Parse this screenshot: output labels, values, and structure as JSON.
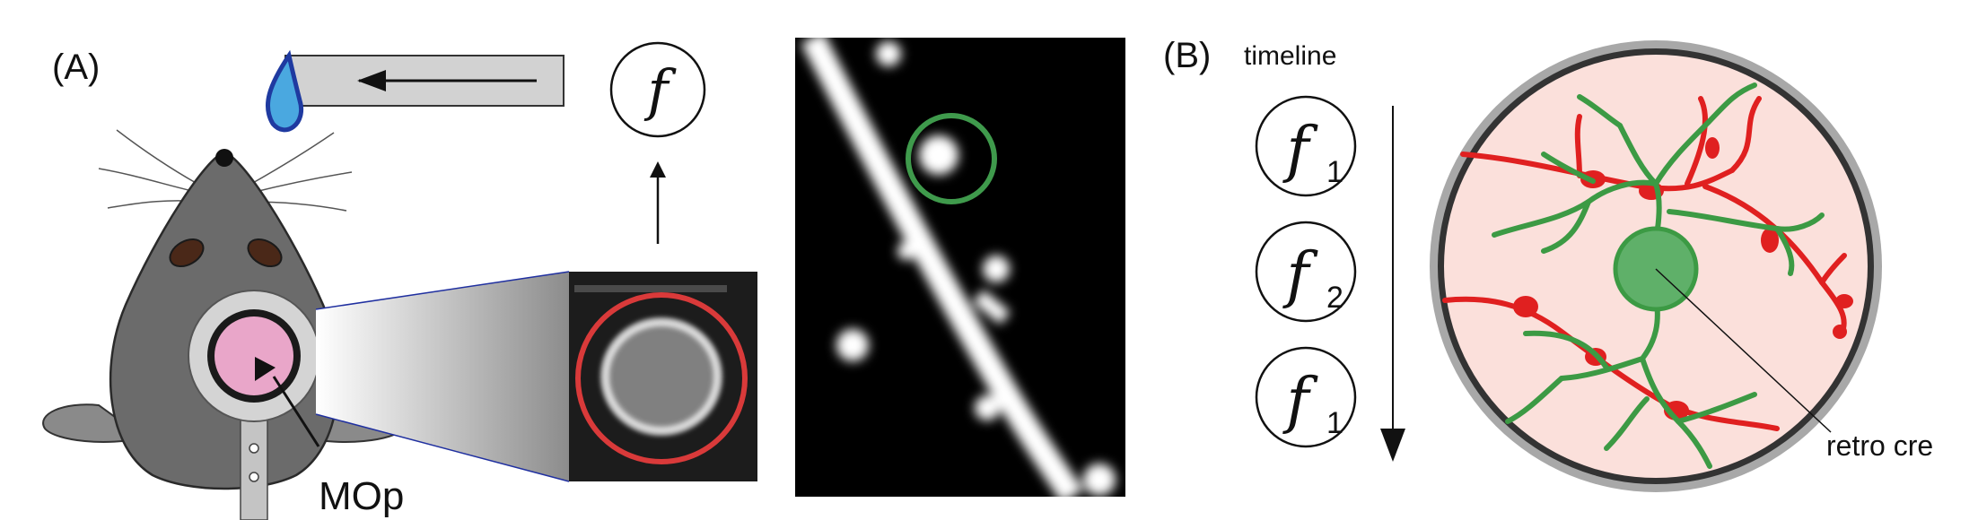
{
  "panel_a": {
    "label": "(A)",
    "region_label": "MOp",
    "signal_symbol": "f"
  },
  "panel_b": {
    "label": "(B)",
    "timeline_label": "timeline",
    "timeline_steps": [
      {
        "symbol": "f",
        "subscript": "1"
      },
      {
        "symbol": "f",
        "subscript": "2"
      },
      {
        "symbol": "f",
        "subscript": "1"
      }
    ],
    "annotation": "retro cre"
  },
  "colors": {
    "mouse_body": "#6b6b6b",
    "water_drop": "#4aa8e0",
    "window_pink": "#e9a6c9",
    "highlight_red": "#d93a3a",
    "highlight_green": "#3f9a4c",
    "axon_red": "#e02020",
    "dendrite_green": "#3c9a44",
    "tissue_pink": "#fbe0db"
  }
}
